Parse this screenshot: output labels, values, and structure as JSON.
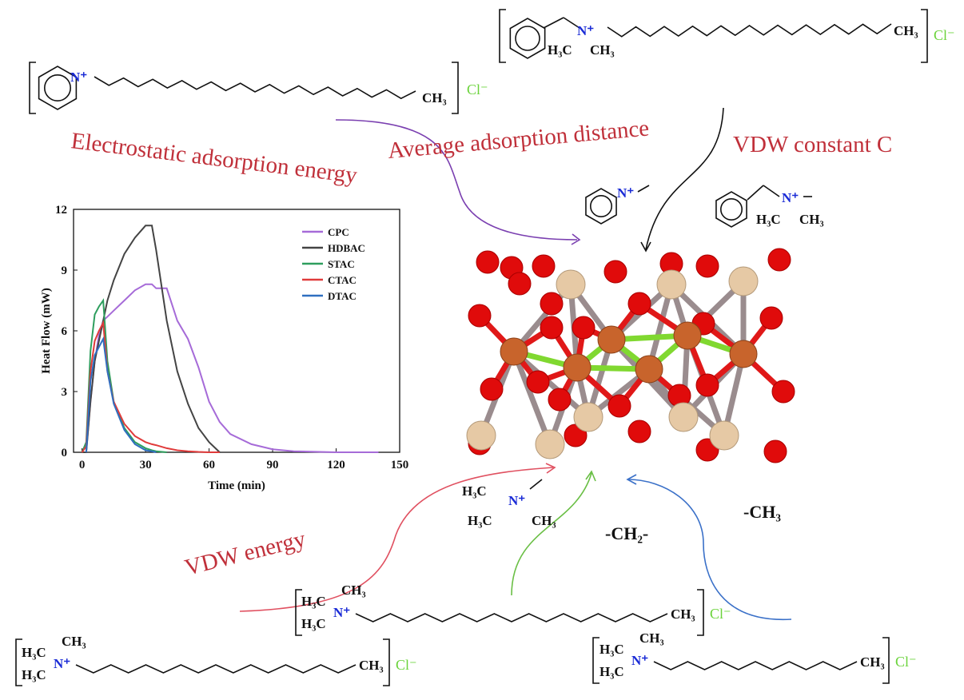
{
  "labels": {
    "electrostatic": "Electrostatic adsorption energy",
    "distance": "Average adsorption distance",
    "vdw_constant": "VDW constant C",
    "vdw_energy": "VDW energy",
    "ch2": "-CH₂-",
    "ch3": "-CH₃"
  },
  "molecules": {
    "cpc": {
      "n": "N⁺",
      "end": "CH₃",
      "anion": "Cl⁻"
    },
    "hdbac": {
      "n": "N⁺",
      "left": "H₃C",
      "right": "CH₃",
      "end": "CH₃",
      "anion": "Cl⁻"
    },
    "pyridinium_head": {
      "n": "N⁺"
    },
    "benzyl_head": {
      "n": "N⁺",
      "left": "H₃C",
      "right": "CH₃"
    },
    "trimethyl_head": {
      "top": "H₃C",
      "n": "N⁺",
      "left": "H₃C",
      "right": "CH₃"
    },
    "stac": {
      "top_left": "H₃C",
      "top_right": "CH₃",
      "n": "N⁺",
      "bottom_left": "H₃C",
      "end": "CH₃",
      "anion": "Cl⁻"
    },
    "ctac": {
      "top_left": "H₃C",
      "top_right": "CH₃",
      "n": "N⁺",
      "bottom_left": "H₃C",
      "end": "CH₃",
      "anion": "Cl⁻"
    },
    "dtac": {
      "top_left": "H₃C",
      "top_right": "CH₃",
      "n": "N⁺",
      "bottom_left": "H₃C",
      "end": "CH₃",
      "anion": "Cl⁻"
    }
  },
  "chart_data": {
    "type": "line",
    "x_label": "Time (min)",
    "y_label": "Heat Flow (mW)",
    "x": [
      0,
      2,
      4,
      6,
      8,
      10,
      12,
      15,
      20,
      25,
      30,
      33,
      35,
      40,
      45,
      50,
      55,
      60,
      65,
      70,
      80,
      90,
      100,
      120,
      140
    ],
    "series": [
      {
        "name": "CPC",
        "color": "#a66bd8",
        "values": [
          0,
          0,
          2.5,
          4.5,
          5.8,
          6.5,
          6.7,
          7.0,
          7.5,
          8.0,
          8.3,
          8.3,
          8.1,
          8.1,
          6.5,
          5.6,
          4.2,
          2.5,
          1.5,
          0.9,
          0.4,
          0.15,
          0.05,
          0,
          0
        ]
      },
      {
        "name": "HDBAC",
        "color": "#444444",
        "values": [
          0,
          0,
          2.5,
          4.5,
          5.5,
          6.5,
          7.5,
          8.5,
          9.8,
          10.6,
          11.2,
          11.2,
          10,
          6.5,
          4.0,
          2.4,
          1.2,
          0.5,
          0,
          null,
          null,
          null,
          null,
          null,
          null
        ]
      },
      {
        "name": "STAC",
        "color": "#2e9e5e",
        "values": [
          0,
          0.5,
          5,
          6.8,
          7.2,
          7.5,
          4.5,
          2.5,
          1.2,
          0.5,
          0.2,
          0.1,
          0.05,
          0,
          null,
          null,
          null,
          null,
          null,
          null,
          null,
          null,
          null,
          null,
          null
        ]
      },
      {
        "name": "CTAC",
        "color": "#e03b3b",
        "values": [
          0,
          0.3,
          4,
          5.5,
          6,
          6.4,
          4,
          2.5,
          1.4,
          0.8,
          0.5,
          0.4,
          0.35,
          0.2,
          0.1,
          0.05,
          0.02,
          0,
          0,
          null,
          null,
          null,
          null,
          null,
          null
        ]
      },
      {
        "name": "DTAC",
        "color": "#2f6fc0",
        "values": [
          null,
          0,
          3.5,
          4.8,
          5.2,
          5.6,
          4,
          2.4,
          1.1,
          0.4,
          0.1,
          0.05,
          0,
          null,
          null,
          null,
          null,
          null,
          null,
          null,
          null,
          null,
          null,
          null,
          null
        ]
      }
    ],
    "xlim": [
      -4,
      150
    ],
    "ylim": [
      0,
      12
    ],
    "xticks": [
      0,
      30,
      60,
      90,
      120,
      150
    ],
    "yticks": [
      0,
      3,
      6,
      9,
      12
    ],
    "legend": "upper right"
  }
}
